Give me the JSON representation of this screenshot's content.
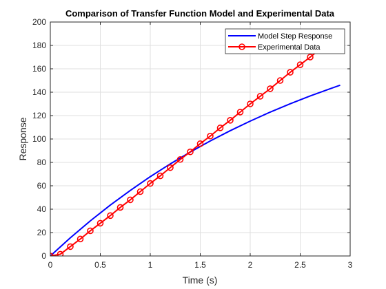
{
  "chart_data": {
    "type": "line",
    "title": "Comparison of Transfer Function Model and Experimental Data",
    "xlabel": "Time (s)",
    "ylabel": "Response",
    "xlim": [
      0,
      3
    ],
    "ylim": [
      0,
      200
    ],
    "xticks": [
      "0",
      "0.5",
      "1",
      "1.5",
      "2",
      "2.5",
      "3"
    ],
    "yticks": [
      "0",
      "20",
      "40",
      "60",
      "80",
      "100",
      "120",
      "140",
      "160",
      "180",
      "200"
    ],
    "grid": true,
    "legend_placement": "top-right",
    "series": [
      {
        "name": "Model Step Response",
        "color": "#0000ff",
        "style": "line",
        "x": [
          0,
          0.2,
          0.4,
          0.6,
          0.8,
          1.0,
          1.2,
          1.4,
          1.6,
          1.8,
          2.0,
          2.2,
          2.4,
          2.6,
          2.8,
          2.9
        ],
        "y": [
          0,
          15.5,
          30.0,
          43.5,
          56.0,
          67.8,
          78.7,
          88.8,
          98.3,
          107.1,
          115.3,
          123.0,
          130.1,
          136.8,
          143.0,
          146.0
        ]
      },
      {
        "name": "Experimental Data",
        "color": "#ff0000",
        "style": "line-marker",
        "marker": "circle",
        "x": [
          0,
          0.1,
          0.2,
          0.3,
          0.4,
          0.5,
          0.6,
          0.7,
          0.8,
          0.9,
          1.0,
          1.1,
          1.2,
          1.3,
          1.4,
          1.5,
          1.6,
          1.7,
          1.8,
          1.9,
          2.0,
          2.1,
          2.2,
          2.3,
          2.4,
          2.5,
          2.6,
          2.7,
          2.8
        ],
        "y": [
          0,
          1.5,
          8,
          14.5,
          21.5,
          28,
          34.5,
          41.5,
          48,
          55,
          62,
          68.5,
          75.5,
          82.5,
          89,
          96,
          102.5,
          109.5,
          116,
          123,
          130,
          136.5,
          143,
          150,
          157,
          163.5,
          170,
          177,
          184
        ]
      }
    ]
  }
}
